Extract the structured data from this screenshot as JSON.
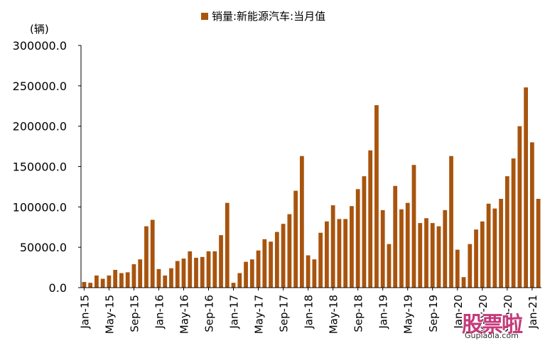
{
  "chart_data": {
    "type": "bar",
    "legend": "销量:新能源汽车:当月值",
    "unit_label": "(辆)",
    "color": "#A8540E",
    "ylim": [
      0,
      300000
    ],
    "yticks": [
      "0.0",
      "50000.0",
      "100000.0",
      "150000.0",
      "200000.0",
      "250000.0",
      "300000.0"
    ],
    "ytick_values": [
      0,
      50000,
      100000,
      150000,
      200000,
      250000,
      300000
    ],
    "xtick_labels": [
      "Jan-15",
      "May-15",
      "Sep-15",
      "Jan-16",
      "May-16",
      "Sep-16",
      "Jan-17",
      "May-17",
      "Sep-17",
      "Jan-18",
      "May-18",
      "Sep-18",
      "Jan-19",
      "May-19",
      "Sep-19",
      "Jan-20",
      "May-20",
      "Sep-20",
      "Jan-21"
    ],
    "xtick_indices": [
      0,
      4,
      8,
      12,
      16,
      20,
      24,
      28,
      32,
      36,
      40,
      44,
      48,
      52,
      56,
      60,
      64,
      68,
      72
    ],
    "categories": [
      "Jan-15",
      "Feb-15",
      "Mar-15",
      "Apr-15",
      "May-15",
      "Jun-15",
      "Jul-15",
      "Aug-15",
      "Sep-15",
      "Oct-15",
      "Nov-15",
      "Dec-15",
      "Jan-16",
      "Feb-16",
      "Mar-16",
      "Apr-16",
      "May-16",
      "Jun-16",
      "Jul-16",
      "Aug-16",
      "Sep-16",
      "Oct-16",
      "Nov-16",
      "Dec-16",
      "Jan-17",
      "Feb-17",
      "Mar-17",
      "Apr-17",
      "May-17",
      "Jun-17",
      "Jul-17",
      "Aug-17",
      "Sep-17",
      "Oct-17",
      "Nov-17",
      "Dec-17",
      "Jan-18",
      "Feb-18",
      "Mar-18",
      "Apr-18",
      "May-18",
      "Jun-18",
      "Jul-18",
      "Aug-18",
      "Sep-18",
      "Oct-18",
      "Nov-18",
      "Dec-18",
      "Jan-19",
      "Feb-19",
      "Mar-19",
      "Apr-19",
      "May-19",
      "Jun-19",
      "Jul-19",
      "Aug-19",
      "Sep-19",
      "Oct-19",
      "Nov-19",
      "Dec-19",
      "Jan-20",
      "Feb-20",
      "Mar-20",
      "Apr-20",
      "May-20",
      "Jun-20",
      "Jul-20",
      "Aug-20",
      "Sep-20",
      "Oct-20",
      "Nov-20",
      "Dec-20",
      "Jan-21",
      "Feb-21"
    ],
    "values": [
      7000,
      6000,
      15000,
      11000,
      15000,
      22000,
      18000,
      19000,
      29000,
      35000,
      76000,
      84000,
      23000,
      15000,
      24000,
      33000,
      36000,
      45000,
      37000,
      38000,
      45000,
      45000,
      65000,
      105000,
      6000,
      18000,
      32000,
      35000,
      46000,
      60000,
      57000,
      69000,
      79000,
      91000,
      120000,
      163000,
      40000,
      35000,
      68000,
      82000,
      102000,
      85000,
      85000,
      101000,
      122000,
      138000,
      170000,
      226000,
      96000,
      54000,
      126000,
      97000,
      105000,
      152000,
      80000,
      86000,
      80000,
      76000,
      96000,
      163000,
      47000,
      13000,
      54000,
      72000,
      82000,
      104000,
      98000,
      110000,
      138000,
      160000,
      200000,
      248000,
      180000,
      110000
    ]
  },
  "watermark": {
    "text": "股票啦",
    "url": "Gupiaola.com"
  }
}
